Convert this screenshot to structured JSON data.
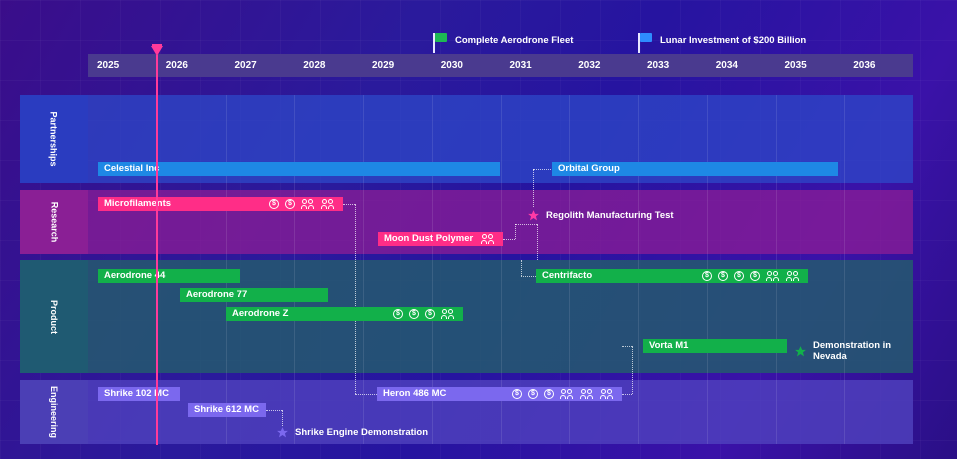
{
  "milestones": [
    {
      "label": "Complete Aerodrone Fleet",
      "color": "#1db954"
    },
    {
      "label": "Lunar Investment of $200 Billion",
      "color": "#2e8cff"
    }
  ],
  "years": [
    "2025",
    "2026",
    "2027",
    "2028",
    "2029",
    "2030",
    "2031",
    "2032",
    "2033",
    "2034",
    "2035",
    "2036"
  ],
  "lanes": {
    "partnerships": {
      "label": "Partnerships",
      "color": "#2a3db8"
    },
    "research": {
      "label": "Research",
      "color": "#8a1f95"
    },
    "product": {
      "label": "Product",
      "color": "#25566e"
    },
    "engineering": {
      "label": "Engineering",
      "color": "#4b3fb5"
    }
  },
  "bars": {
    "celestial": "Celestial Inc",
    "orbital": "Orbital Group",
    "microfilaments": "Microfilaments",
    "moondust": "Moon Dust Polymer",
    "aerodrone44": "Aerodrone 44",
    "aerodrone77": "Aerodrone 77",
    "aerodronez": "Aerodrone Z",
    "centrifacto": "Centrifacto",
    "vorta": "Vorta M1",
    "shrike102": "Shrike 102 MC",
    "shrike612": "Shrike 612 MC",
    "heron": "Heron 486 MC"
  },
  "markers": {
    "regolith": "Regolith Manufacturing Test",
    "demo_nevada": "Demonstration in Nevada",
    "shrike_demo": "Shrike Engine Demonstration"
  },
  "icon_glyph": "$",
  "colors": {
    "blue": "#1e88e5",
    "pink": "#ff2d87",
    "green": "#12b04a",
    "purple": "#7b68ee",
    "today": "#ff3a9a"
  }
}
